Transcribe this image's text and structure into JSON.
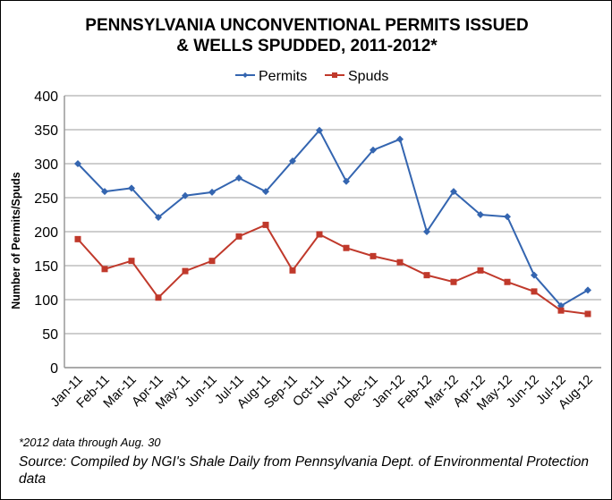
{
  "chart_data": {
    "type": "line",
    "title": [
      "PENNSYLVANIA UNCONVENTIONAL PERMITS ISSUED",
      "& WELLS SPUDDED, 2011-2012*"
    ],
    "ylabel": "Number of Permits/Spuds",
    "xlabel": "",
    "ylim": [
      0,
      400
    ],
    "yticks": [
      0,
      50,
      100,
      150,
      200,
      250,
      300,
      350,
      400
    ],
    "grid": true,
    "legend": "top",
    "categories": [
      "Jan-11",
      "Feb-11",
      "Mar-11",
      "Apr-11",
      "May-11",
      "Jun-11",
      "Jul-11",
      "Aug-11",
      "Sep-11",
      "Oct-11",
      "Nov-11",
      "Dec-11",
      "Jan-12",
      "Feb-12",
      "Mar-12",
      "Apr-12",
      "May-12",
      "Jun-12",
      "Jul-12",
      "Aug-12"
    ],
    "series": [
      {
        "name": "Permits",
        "color": "#3465b0",
        "marker": "diamond",
        "values": [
          300,
          259,
          264,
          221,
          253,
          258,
          279,
          259,
          304,
          349,
          274,
          320,
          336,
          200,
          259,
          225,
          222,
          136,
          91,
          114
        ]
      },
      {
        "name": "Spuds",
        "color": "#c0392b",
        "marker": "square",
        "values": [
          189,
          145,
          157,
          103,
          142,
          157,
          193,
          210,
          143,
          196,
          176,
          164,
          155,
          136,
          126,
          143,
          126,
          112,
          84,
          79
        ]
      }
    ]
  },
  "footnote": "*2012 data through Aug. 30",
  "source": "Source: Compiled by NGI's Shale Daily from Pennsylvania Dept. of Environmental Protection data"
}
